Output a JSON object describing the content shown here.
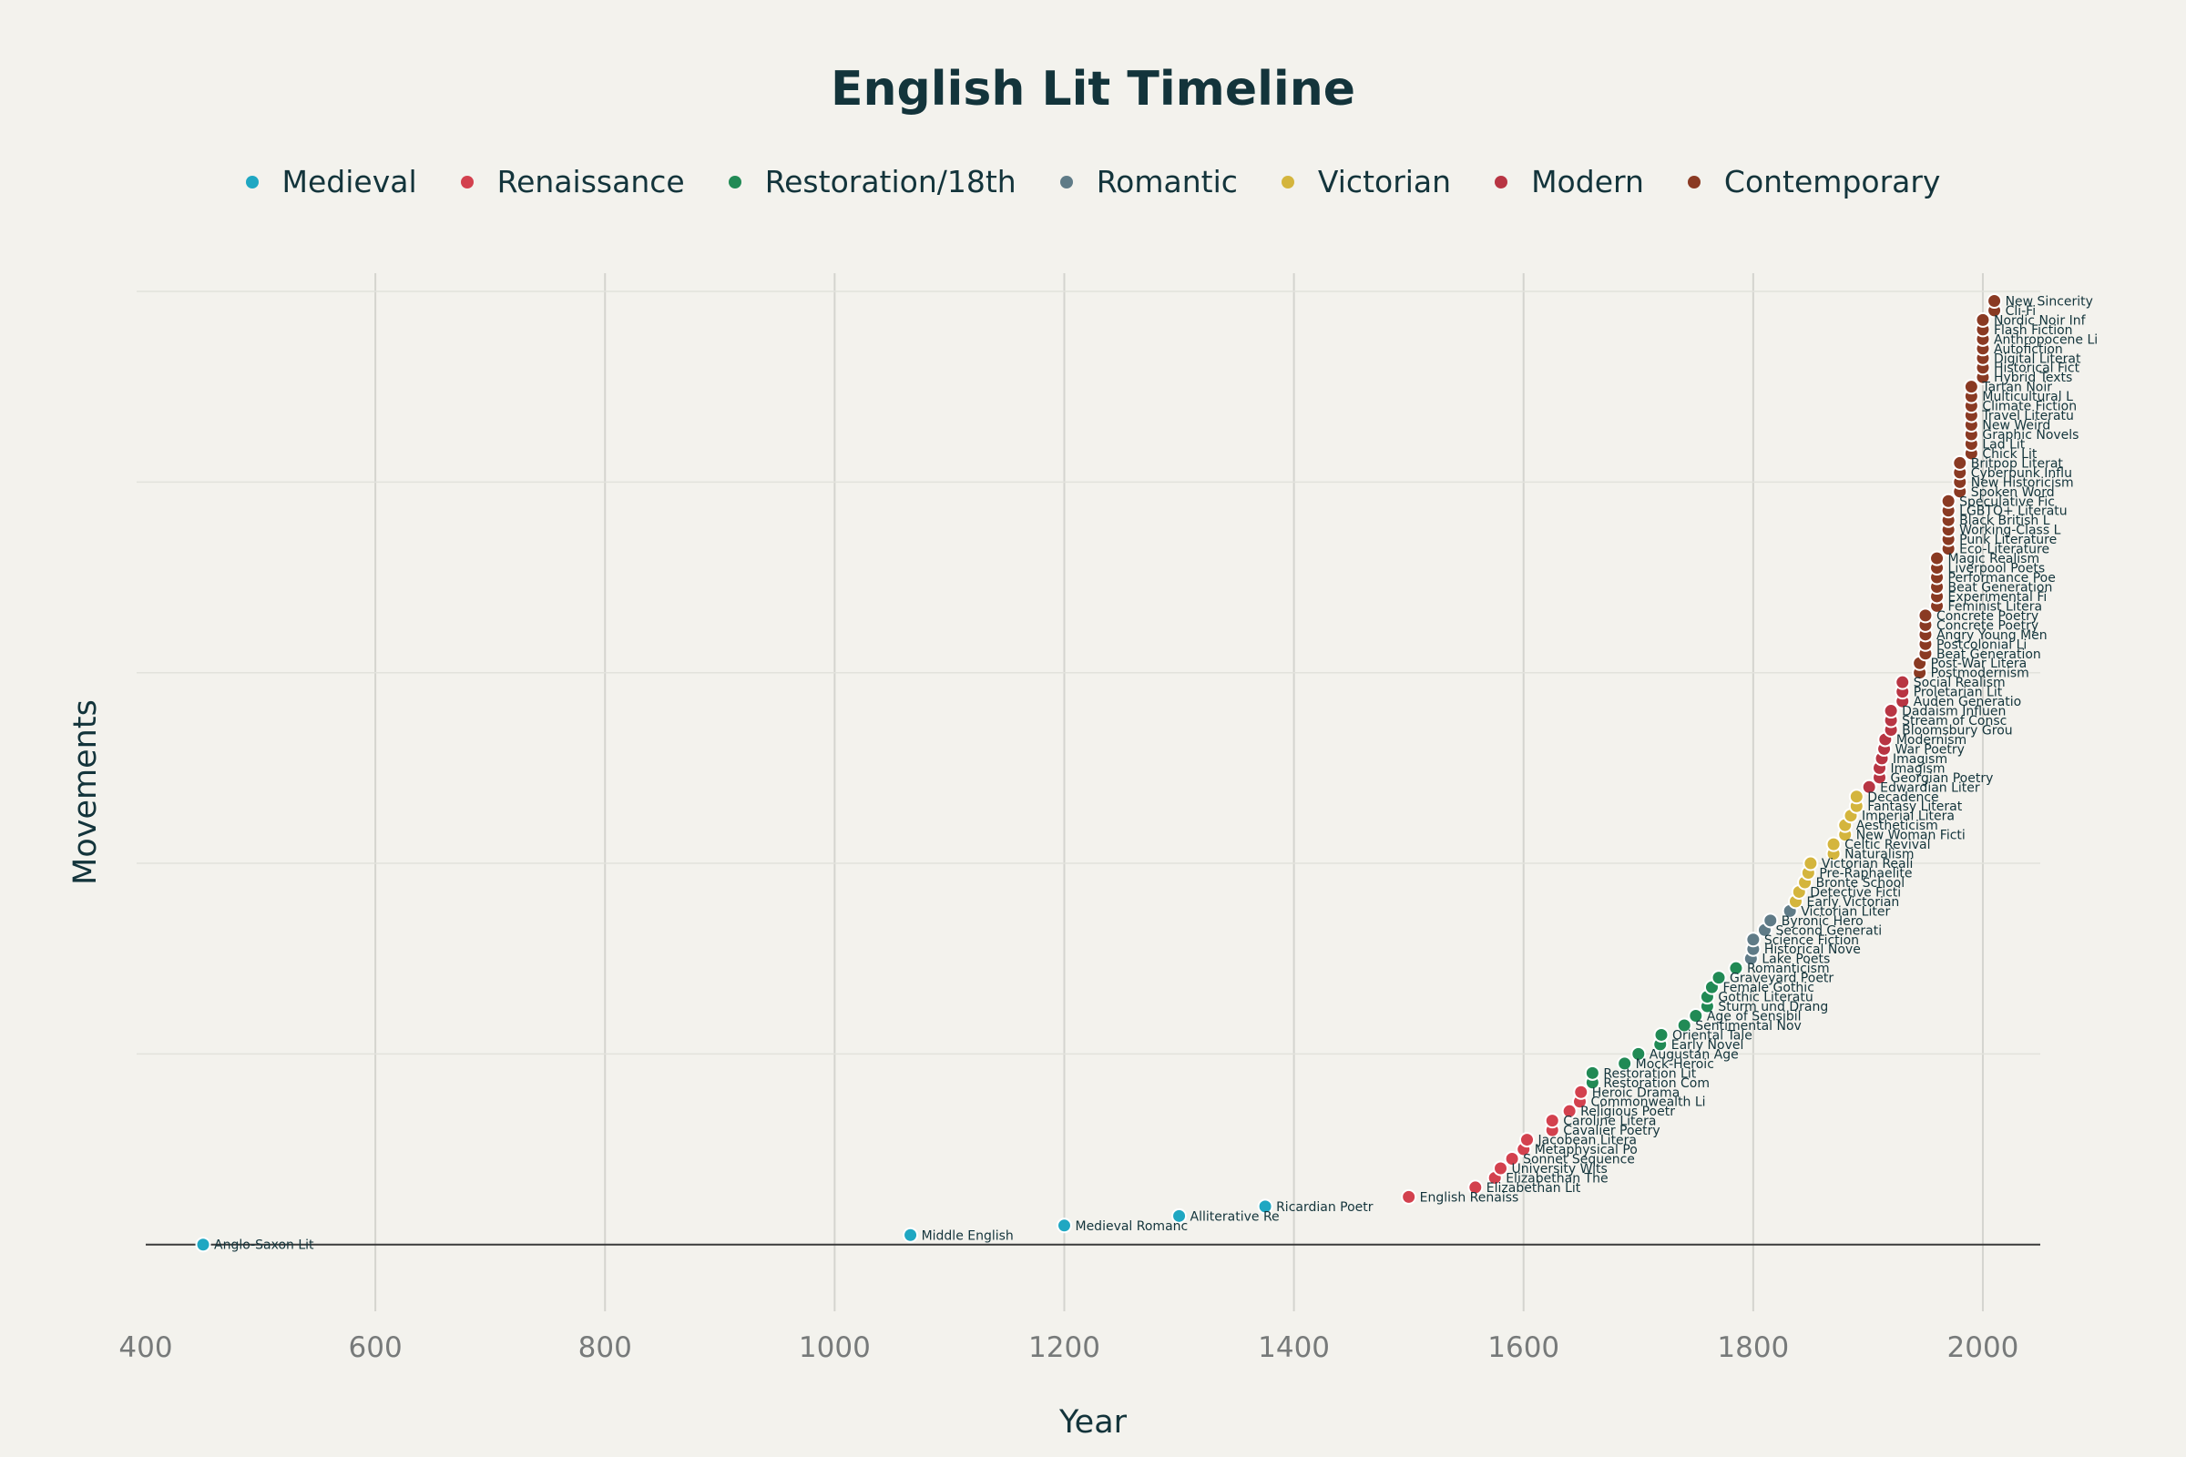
{
  "chart_data": {
    "type": "scatter",
    "title": "English Lit Timeline",
    "xlabel": "Year",
    "ylabel": "Movements",
    "xlim": [
      400,
      2050
    ],
    "ylim": [
      -7,
      100
    ],
    "x_ticks": [
      400,
      600,
      800,
      1000,
      1200,
      1400,
      1600,
      1800,
      2000
    ],
    "grid": true,
    "legend_position": "top-center",
    "series": [
      {
        "name": "Medieval",
        "color": "#1fa7c2",
        "points": [
          {
            "x": 450,
            "y": 0,
            "label": "Anglo-Saxon Lit"
          },
          {
            "x": 1066,
            "y": 1,
            "label": "Middle English"
          },
          {
            "x": 1200,
            "y": 2,
            "label": "Medieval Romanc"
          },
          {
            "x": 1300,
            "y": 3,
            "label": "Alliterative Re"
          },
          {
            "x": 1375,
            "y": 4,
            "label": "Ricardian Poetr"
          }
        ]
      },
      {
        "name": "Renaissance",
        "color": "#d3414e",
        "points": [
          {
            "x": 1500,
            "y": 5,
            "label": "English Renaiss"
          },
          {
            "x": 1558,
            "y": 6,
            "label": "Elizabethan Lit"
          },
          {
            "x": 1575,
            "y": 7,
            "label": "Elizabethan The"
          },
          {
            "x": 1580,
            "y": 8,
            "label": "University Wits"
          },
          {
            "x": 1590,
            "y": 9,
            "label": "Sonnet Sequence"
          },
          {
            "x": 1600,
            "y": 10,
            "label": "Metaphysical Po"
          },
          {
            "x": 1603,
            "y": 11,
            "label": "Jacobean Litera"
          },
          {
            "x": 1625,
            "y": 12,
            "label": "Cavalier Poetry"
          },
          {
            "x": 1625,
            "y": 13,
            "label": "Caroline Litera"
          },
          {
            "x": 1640,
            "y": 14,
            "label": "Religious Poetr"
          },
          {
            "x": 1649,
            "y": 15,
            "label": "Commonwealth Li"
          },
          {
            "x": 1650,
            "y": 16,
            "label": "Heroic Drama"
          }
        ]
      },
      {
        "name": "Restoration/18th",
        "color": "#218a55",
        "points": [
          {
            "x": 1660,
            "y": 17,
            "label": "Restoration Com"
          },
          {
            "x": 1660,
            "y": 18,
            "label": "Restoration Lit"
          },
          {
            "x": 1688,
            "y": 19,
            "label": "Mock-Heroic"
          },
          {
            "x": 1700,
            "y": 20,
            "label": "Augustan Age"
          },
          {
            "x": 1719,
            "y": 21,
            "label": "Early Novel"
          },
          {
            "x": 1720,
            "y": 22,
            "label": "Oriental Tale"
          },
          {
            "x": 1740,
            "y": 23,
            "label": "Sentimental Nov"
          },
          {
            "x": 1750,
            "y": 24,
            "label": "Age of Sensibil"
          },
          {
            "x": 1760,
            "y": 25,
            "label": "Sturm und Drang"
          },
          {
            "x": 1760,
            "y": 26,
            "label": "Gothic Literatu"
          },
          {
            "x": 1764,
            "y": 27,
            "label": "Female Gothic"
          },
          {
            "x": 1770,
            "y": 28,
            "label": "Graveyard Poetr"
          },
          {
            "x": 1785,
            "y": 29,
            "label": "Romanticism"
          }
        ]
      },
      {
        "name": "Romantic",
        "color": "#5f7b87",
        "points": [
          {
            "x": 1798,
            "y": 30,
            "label": "Lake Poets"
          },
          {
            "x": 1800,
            "y": 31,
            "label": "Historical Nove"
          },
          {
            "x": 1800,
            "y": 32,
            "label": "Science Fiction"
          },
          {
            "x": 1810,
            "y": 33,
            "label": "Second Generati"
          },
          {
            "x": 1815,
            "y": 34,
            "label": "Byronic Hero"
          },
          {
            "x": 1832,
            "y": 35,
            "label": "Victorian Liter"
          }
        ]
      },
      {
        "name": "Victorian",
        "color": "#d4b53d",
        "points": [
          {
            "x": 1837,
            "y": 36,
            "label": "Early Victorian"
          },
          {
            "x": 1840,
            "y": 37,
            "label": "Detective Ficti"
          },
          {
            "x": 1845,
            "y": 38,
            "label": "Bronte School"
          },
          {
            "x": 1848,
            "y": 39,
            "label": "Pre-Raphaelite"
          },
          {
            "x": 1850,
            "y": 40,
            "label": "Victorian Reali"
          },
          {
            "x": 1870,
            "y": 41,
            "label": "Naturalism"
          },
          {
            "x": 1870,
            "y": 42,
            "label": "Celtic Revival"
          },
          {
            "x": 1880,
            "y": 43,
            "label": "New Woman Ficti"
          },
          {
            "x": 1880,
            "y": 44,
            "label": "Aestheticism"
          },
          {
            "x": 1885,
            "y": 45,
            "label": "Imperial Litera"
          },
          {
            "x": 1890,
            "y": 46,
            "label": "Fantasy Literat"
          },
          {
            "x": 1890,
            "y": 47,
            "label": "Decadence"
          }
        ]
      },
      {
        "name": "Modern",
        "color": "#b83543",
        "points": [
          {
            "x": 1901,
            "y": 48,
            "label": "Edwardian Liter"
          },
          {
            "x": 1910,
            "y": 49,
            "label": "Georgian Poetry"
          },
          {
            "x": 1910,
            "y": 50,
            "label": "Imagism"
          },
          {
            "x": 1912,
            "y": 51,
            "label": "Imagism"
          },
          {
            "x": 1914,
            "y": 52,
            "label": "War Poetry"
          },
          {
            "x": 1915,
            "y": 53,
            "label": "Modernism"
          },
          {
            "x": 1920,
            "y": 54,
            "label": "Bloomsbury Grou"
          },
          {
            "x": 1920,
            "y": 55,
            "label": "Stream of Consc"
          },
          {
            "x": 1920,
            "y": 56,
            "label": "Dadaism Influen"
          },
          {
            "x": 1930,
            "y": 57,
            "label": "Auden Generatio"
          },
          {
            "x": 1930,
            "y": 58,
            "label": "Proletarian Lit"
          },
          {
            "x": 1930,
            "y": 59,
            "label": "Social Realism"
          }
        ]
      },
      {
        "name": "Contemporary",
        "color": "#8a3a23",
        "points": [
          {
            "x": 1945,
            "y": 60,
            "label": "Postmodernism"
          },
          {
            "x": 1945,
            "y": 61,
            "label": "Post-War Litera"
          },
          {
            "x": 1950,
            "y": 62,
            "label": "Beat Generation"
          },
          {
            "x": 1950,
            "y": 63,
            "label": "Postcolonial Li"
          },
          {
            "x": 1950,
            "y": 64,
            "label": "Angry Young Men"
          },
          {
            "x": 1950,
            "y": 65,
            "label": "Concrete Poetry"
          },
          {
            "x": 1950,
            "y": 66,
            "label": "Concrete Poetry"
          },
          {
            "x": 1960,
            "y": 67,
            "label": "Feminist Litera"
          },
          {
            "x": 1960,
            "y": 68,
            "label": "Experimental Fi"
          },
          {
            "x": 1960,
            "y": 69,
            "label": "Beat Generation"
          },
          {
            "x": 1960,
            "y": 70,
            "label": "Performance Poe"
          },
          {
            "x": 1960,
            "y": 71,
            "label": "Liverpool Poets"
          },
          {
            "x": 1960,
            "y": 72,
            "label": "Magic Realism"
          },
          {
            "x": 1970,
            "y": 73,
            "label": "Eco-Literature"
          },
          {
            "x": 1970,
            "y": 74,
            "label": "Punk Literature"
          },
          {
            "x": 1970,
            "y": 75,
            "label": "Working-Class L"
          },
          {
            "x": 1970,
            "y": 76,
            "label": "Black British L"
          },
          {
            "x": 1970,
            "y": 77,
            "label": "LGBTQ+ Literatu"
          },
          {
            "x": 1970,
            "y": 78,
            "label": "Speculative Fic"
          },
          {
            "x": 1980,
            "y": 79,
            "label": "Spoken Word"
          },
          {
            "x": 1980,
            "y": 80,
            "label": "New Historicism"
          },
          {
            "x": 1980,
            "y": 81,
            "label": "Cyberpunk Influ"
          },
          {
            "x": 1980,
            "y": 82,
            "label": "Britpop Literat"
          },
          {
            "x": 1990,
            "y": 83,
            "label": "Chick Lit"
          },
          {
            "x": 1990,
            "y": 84,
            "label": "Lad Lit"
          },
          {
            "x": 1990,
            "y": 85,
            "label": "Graphic Novels"
          },
          {
            "x": 1990,
            "y": 86,
            "label": "New Weird"
          },
          {
            "x": 1990,
            "y": 87,
            "label": "Travel Literatu"
          },
          {
            "x": 1990,
            "y": 88,
            "label": "Climate Fiction"
          },
          {
            "x": 1990,
            "y": 89,
            "label": "Multicultural L"
          },
          {
            "x": 1990,
            "y": 90,
            "label": "Tartan Noir"
          },
          {
            "x": 2000,
            "y": 91,
            "label": "Hybrid Texts"
          },
          {
            "x": 2000,
            "y": 92,
            "label": "Historical Fict"
          },
          {
            "x": 2000,
            "y": 93,
            "label": "Digital Literat"
          },
          {
            "x": 2000,
            "y": 94,
            "label": "Autofiction"
          },
          {
            "x": 2000,
            "y": 95,
            "label": "Anthropocene Li"
          },
          {
            "x": 2000,
            "y": 96,
            "label": "Flash Fiction"
          },
          {
            "x": 2000,
            "y": 97,
            "label": "Nordic Noir Inf"
          },
          {
            "x": 2010,
            "y": 98,
            "label": "Cli-Fi"
          },
          {
            "x": 2010,
            "y": 99,
            "label": "New Sincerity"
          }
        ]
      }
    ]
  }
}
